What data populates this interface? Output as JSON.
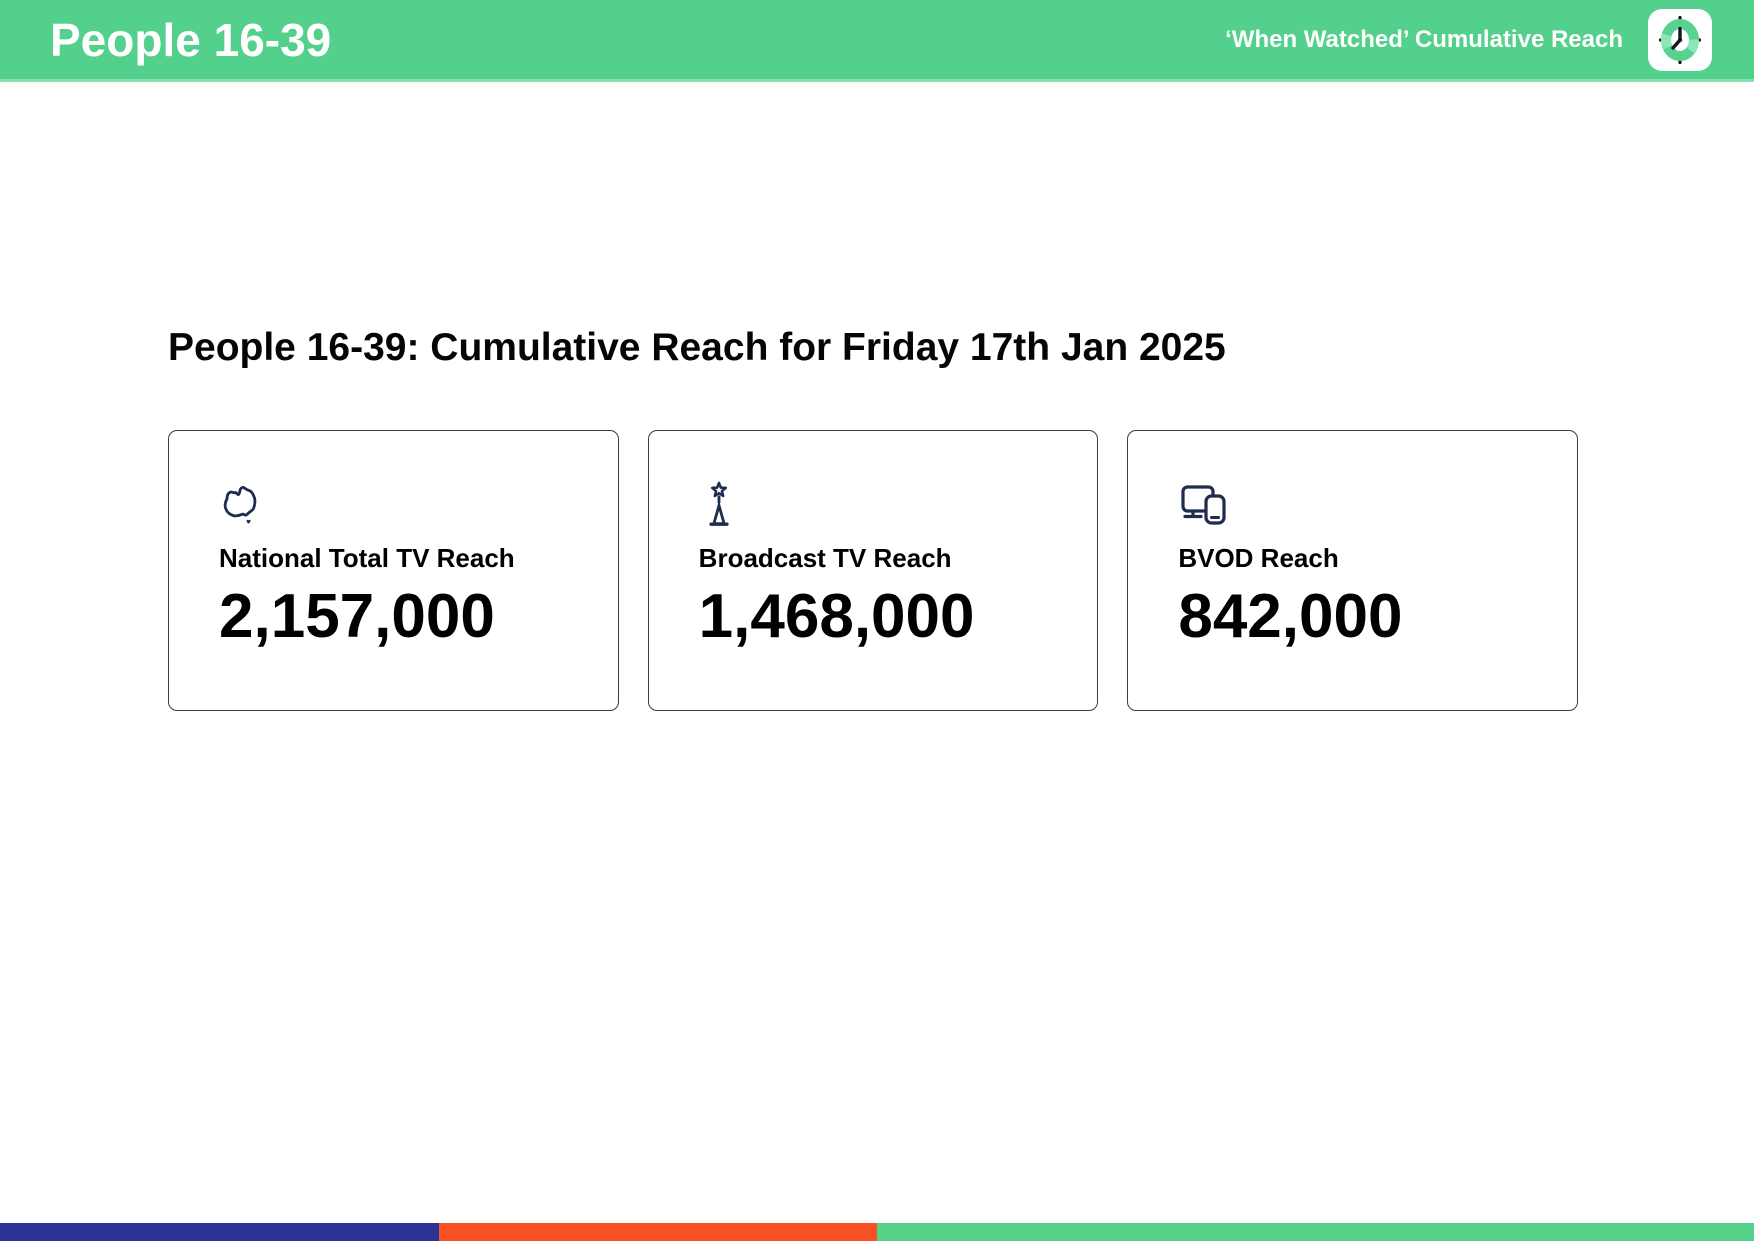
{
  "header": {
    "title": "People 16-39",
    "subtitle": "‘When Watched’ Cumulative Reach"
  },
  "main": {
    "heading": "People 16-39: Cumulative Reach for Friday 17th Jan 2025",
    "cards": [
      {
        "icon": "australia-map-icon",
        "label": "National Total TV Reach",
        "value": "2,157,000"
      },
      {
        "icon": "broadcast-tower-icon",
        "label": "Broadcast TV Reach",
        "value": "1,468,000"
      },
      {
        "icon": "tv-and-phone-icon",
        "label": "BVOD Reach",
        "value": "842,000"
      }
    ]
  },
  "footer": {
    "segments": [
      {
        "name": "navy-segment",
        "color_key": "footer_navy",
        "width_pct": 25
      },
      {
        "name": "orange-segment",
        "color_key": "footer_orange",
        "width_pct": 25
      },
      {
        "name": "green-segment",
        "color_key": "footer_green",
        "width_pct": 50
      }
    ]
  },
  "colors": {
    "header_green": "#53d08b",
    "icon_navy": "#202c4e",
    "card_border": "#333f50",
    "footer_navy": "#2d3394",
    "footer_orange": "#fb4f25",
    "footer_green": "#55d18c",
    "clock_green": "#57d390",
    "clock_light": "#8fe5b9"
  }
}
